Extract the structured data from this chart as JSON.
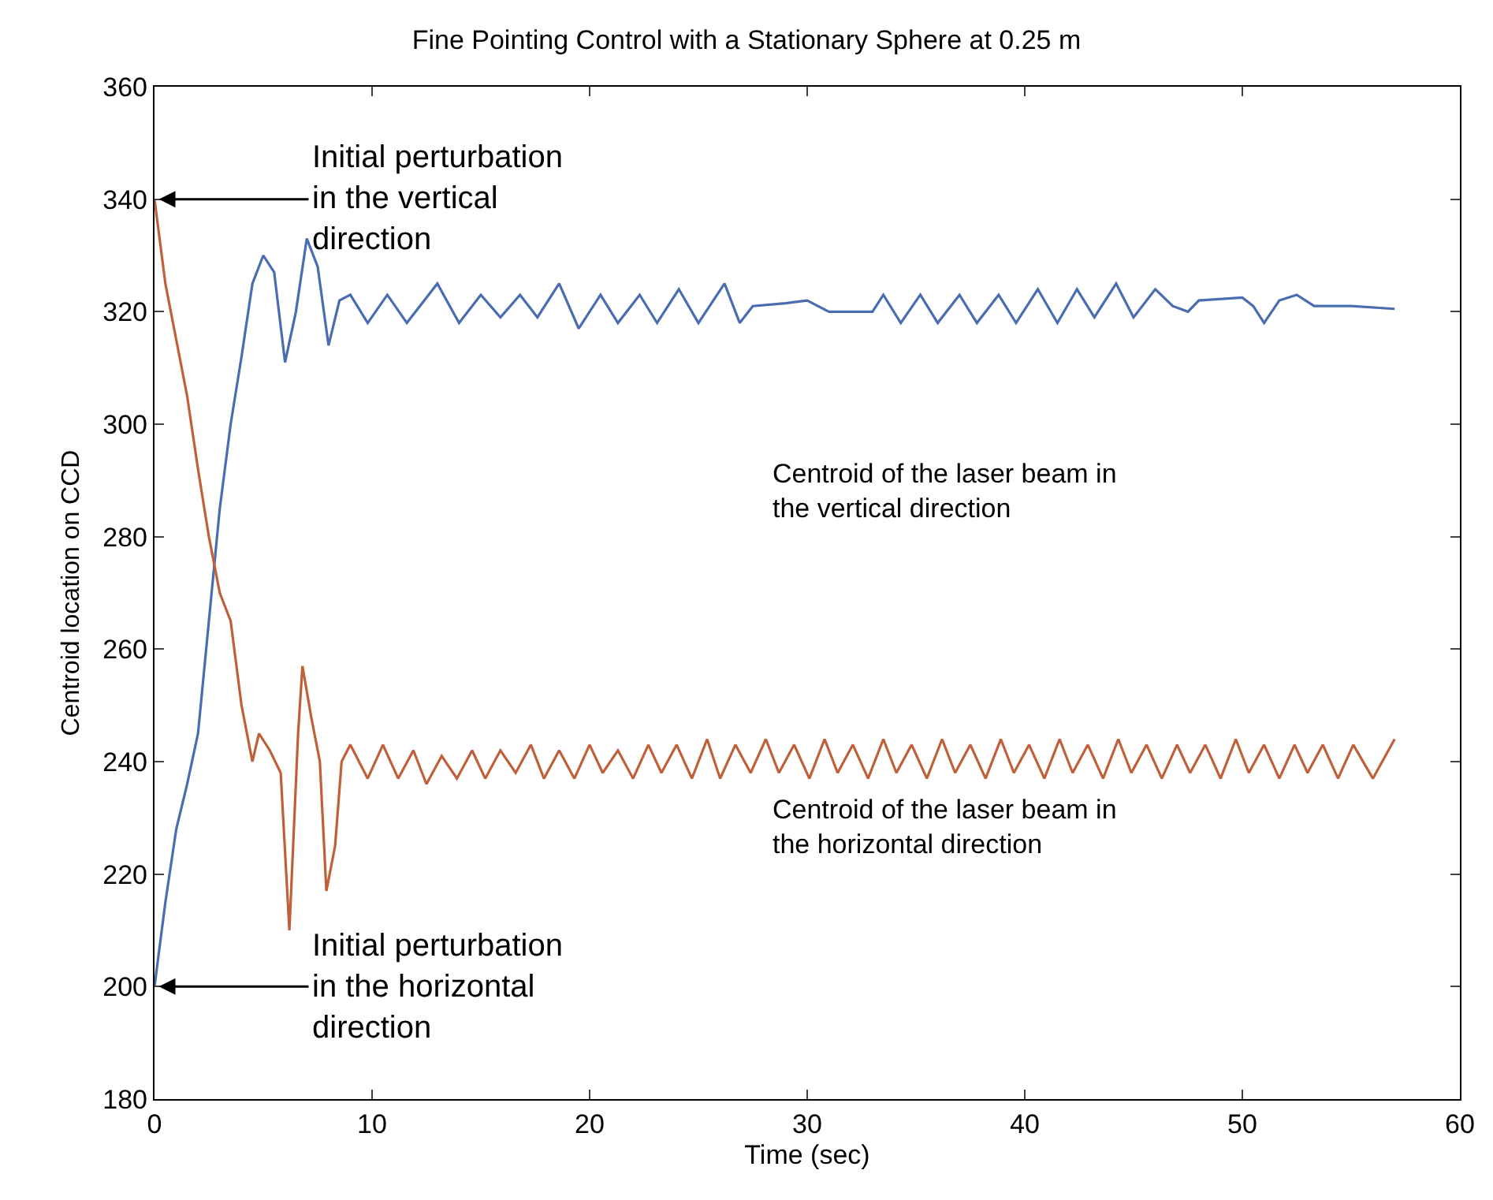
{
  "chart_data": {
    "type": "line",
    "title": "Fine Pointing Control with a Stationary Sphere at 0.25 m",
    "xlabel": "Time (sec)",
    "ylabel": "Centroid location on CCD",
    "xlim": [
      0,
      60
    ],
    "xticks": [
      0,
      10,
      20,
      30,
      40,
      50,
      60
    ],
    "ylim": [
      180,
      360
    ],
    "yticks": [
      180,
      200,
      220,
      240,
      260,
      280,
      300,
      320,
      340,
      360
    ],
    "grid": false,
    "marker": "none",
    "line_style": "solid",
    "series": [
      {
        "color": "#4a6cb0",
        "x": [
          0,
          0.5,
          1,
          1.5,
          2,
          2.5,
          3,
          3.5,
          4,
          4.5,
          5,
          5.5,
          6,
          6.5,
          7,
          7.5,
          8,
          8.5,
          9,
          9.8,
          10.7,
          11.6,
          13,
          14,
          15,
          15.9,
          16.8,
          17.6,
          18.6,
          19.5,
          20.5,
          21.3,
          22.3,
          23.1,
          24.1,
          25,
          26.2,
          26.9,
          27.5,
          29,
          30,
          31,
          33,
          33.5,
          34.3,
          35.2,
          36,
          37,
          37.8,
          38.8,
          39.6,
          40.6,
          41.5,
          42.4,
          43.2,
          44.2,
          45,
          46,
          46.8,
          47.5,
          48,
          50,
          50.5,
          51,
          51.7,
          52.5,
          53.3,
          55,
          57
        ],
        "values": [
          200,
          215,
          228,
          236,
          245,
          265,
          285,
          300,
          312,
          325,
          330,
          327,
          311,
          320,
          333,
          328,
          314,
          322,
          323,
          318,
          323,
          318,
          325,
          318,
          323,
          319,
          323,
          319,
          325,
          317,
          323,
          318,
          323,
          318,
          324,
          318,
          325,
          318,
          321,
          321.5,
          322,
          320,
          320,
          323,
          318,
          323,
          318,
          323,
          318,
          323,
          318,
          324,
          318,
          324,
          319,
          325,
          319,
          324,
          321,
          320,
          322,
          322.5,
          321,
          318,
          322,
          323,
          321,
          321,
          320.5
        ]
      },
      {
        "color": "#c0603a",
        "x": [
          0,
          0.5,
          1,
          1.5,
          2,
          2.5,
          3,
          3.5,
          4,
          4.5,
          4.8,
          5.3,
          5.8,
          6.2,
          6.6,
          6.8,
          7.2,
          7.6,
          7.9,
          8.3,
          8.6,
          9,
          9.8,
          10.5,
          11.2,
          11.9,
          12.5,
          13.2,
          13.9,
          14.6,
          15.2,
          15.9,
          16.6,
          17.3,
          17.9,
          18.6,
          19.3,
          20.0,
          20.6,
          21.3,
          22.0,
          22.7,
          23.3,
          24.0,
          24.7,
          25.4,
          26.0,
          26.7,
          27.4,
          28.1,
          28.7,
          29.4,
          30.1,
          30.8,
          31.4,
          32.1,
          32.8,
          33.5,
          34.1,
          34.8,
          35.5,
          36.2,
          36.8,
          37.5,
          38.2,
          38.9,
          39.5,
          40.2,
          40.9,
          41.6,
          42.2,
          42.9,
          43.6,
          44.3,
          44.9,
          45.6,
          46.3,
          47.0,
          47.6,
          48.3,
          49.0,
          49.7,
          50.3,
          51.0,
          51.7,
          52.4,
          53.0,
          53.7,
          54.4,
          55.1,
          56.0,
          57.0
        ],
        "values": [
          340,
          325,
          315,
          305,
          292,
          280,
          270,
          265,
          250,
          240,
          245,
          242,
          238,
          210,
          245,
          257,
          248,
          240,
          217,
          225,
          240,
          243,
          237,
          243,
          237,
          242,
          236,
          241,
          237,
          242,
          237,
          242,
          238,
          243,
          237,
          242,
          237,
          243,
          238,
          242,
          237,
          243,
          238,
          243,
          237,
          244,
          237,
          243,
          238,
          244,
          238,
          243,
          237,
          244,
          238,
          243,
          237,
          244,
          238,
          243,
          237,
          244,
          238,
          243,
          237,
          244,
          238,
          243,
          237,
          244,
          238,
          243,
          237,
          244,
          238,
          243,
          237,
          243,
          238,
          243,
          237,
          244,
          238,
          243,
          237,
          243,
          238,
          243,
          237,
          243,
          237,
          244
        ]
      }
    ],
    "annotations": [
      {
        "text": "Initial perturbation\nin the vertical\ndirection",
        "x": 0,
        "y": 340
      },
      {
        "text": "Initial perturbation\nin the horizontal\ndirection",
        "x": 0,
        "y": 200
      },
      "Centroid of the laser beam in\nthe vertical direction",
      "Centroid of the laser beam in\nthe horizontal direction"
    ]
  }
}
